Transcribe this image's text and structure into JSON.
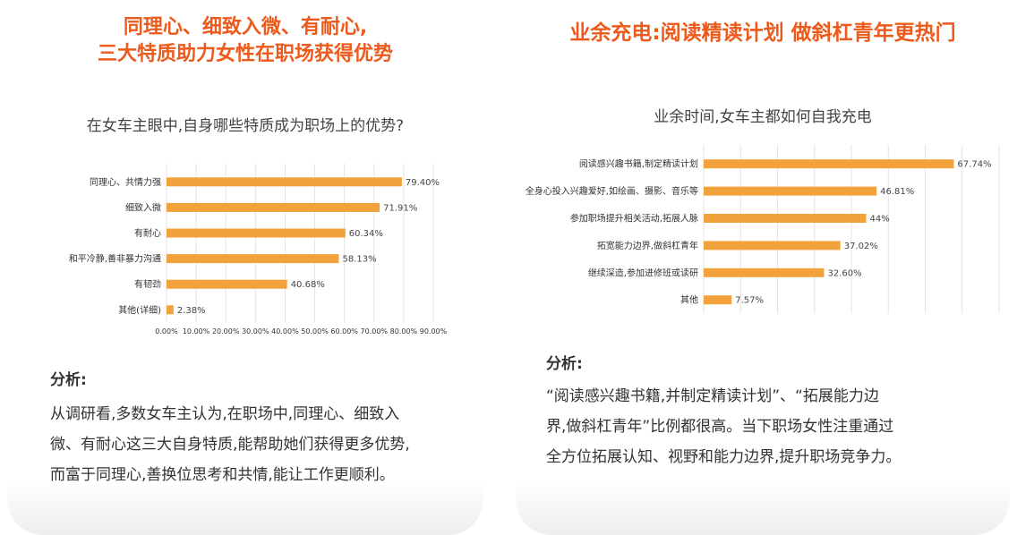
{
  "colors": {
    "title": "#ec5a1c",
    "bar": "#f2a23a",
    "grid": "#e4e4e4"
  },
  "left": {
    "title_lines": [
      "同理心、细致入微、有耐心,",
      "三大特质助力女性在职场获得优势"
    ],
    "question": "在女车主眼中,自身哪些特质成为职场上的优势?",
    "analysis_head": "分析:",
    "analysis_lines": [
      "从调研看,多数女车主认为,在职场中,同理心、细致入",
      "微、有耐心这三大自身特质,能帮助她们获得更多优势,",
      "而富于同理心,善换位思考和共情,能让工作更顺利。"
    ]
  },
  "right": {
    "title": "业余充电:阅读精读计划 做斜杠青年更热门",
    "question": "业余时间,女车主都如何自我充电",
    "analysis_head": "分析:",
    "analysis_lines": [
      "“阅读感兴趣书籍,并制定精读计划”、“拓展能力边",
      "界,做斜杠青年”比例都很高。当下职场女性注重通过",
      "全方位拓展认知、视野和能力边界,提升职场竞争力。"
    ]
  },
  "chart_data": [
    {
      "type": "bar",
      "orientation": "horizontal",
      "categories": [
        "同理心、共情力强",
        "细致入微",
        "有耐心",
        "和平冷静,善非暴力沟通",
        "有韧劲",
        "其他(详细)"
      ],
      "values": [
        79.4,
        71.91,
        60.34,
        58.13,
        40.68,
        2.38
      ],
      "value_labels": [
        "79.40%",
        "71.91%",
        "60.34%",
        "58.13%",
        "40.68%",
        "2.38%"
      ],
      "xlim": [
        0,
        90
      ],
      "xticks": [
        "0.00%",
        "10.00%",
        "20.00%",
        "30.00%",
        "40.00%",
        "50.00%",
        "60.00%",
        "70.00%",
        "80.00%",
        "90.00%"
      ],
      "grid": true
    },
    {
      "type": "bar",
      "orientation": "horizontal",
      "categories": [
        "阅读感兴趣书籍,制定精读计划",
        "全身心投入兴趣爱好,如绘画、摄影、音乐等",
        "参加职场提升相关活动,拓展人脉",
        "拓宽能力边界,做斜杠青年",
        "继续深造,参加进修班或读研",
        "其他"
      ],
      "values": [
        67.74,
        46.81,
        44,
        37.02,
        32.6,
        7.57
      ],
      "value_labels": [
        "67.74%",
        "46.81%",
        "44%",
        "37.02%",
        "32.60%",
        "7.57%"
      ],
      "xlim": [
        0,
        80
      ],
      "grid": true
    }
  ]
}
